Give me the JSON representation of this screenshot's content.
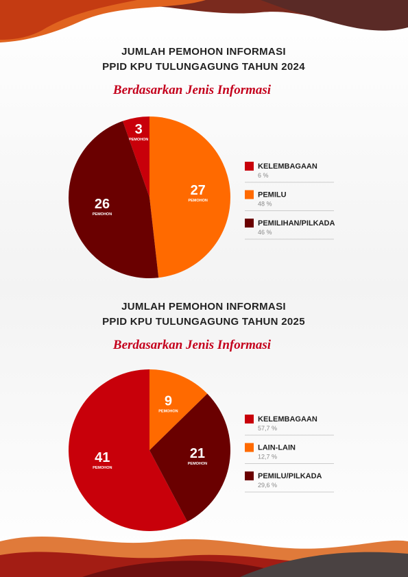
{
  "chart_data": [
    {
      "type": "pie",
      "title": "JUMLAH PEMOHON INFORMASI",
      "subtitle": "PPID KPU TULUNGAGUNG TAHUN 2024",
      "caption": "Berdasarkan Jenis Informasi",
      "unit_label": "PEMOHON",
      "categories": [
        "KELEMBAGAAN",
        "PEMILU",
        "PEMILIHAN/PILKADA"
      ],
      "values": [
        3,
        27,
        26
      ],
      "percent_labels": [
        "6 %",
        "48 %",
        "46 %"
      ],
      "colors": [
        "#c8000a",
        "#ff6a00",
        "#6a0000"
      ]
    },
    {
      "type": "pie",
      "title": "JUMLAH PEMOHON INFORMASI",
      "subtitle": "PPID KPU TULUNGAGUNG TAHUN 2025",
      "caption": "Berdasarkan Jenis Informasi",
      "unit_label": "PEMOHON",
      "categories": [
        "KELEMBAGAAN",
        "LAIN-LAIN",
        "PEMILU/PILKADA"
      ],
      "values": [
        41,
        9,
        21
      ],
      "percent_labels": [
        "57,7 %",
        "12,7 %",
        "29,6 %"
      ],
      "colors": [
        "#c8000a",
        "#ff6a00",
        "#6a0000"
      ]
    }
  ]
}
